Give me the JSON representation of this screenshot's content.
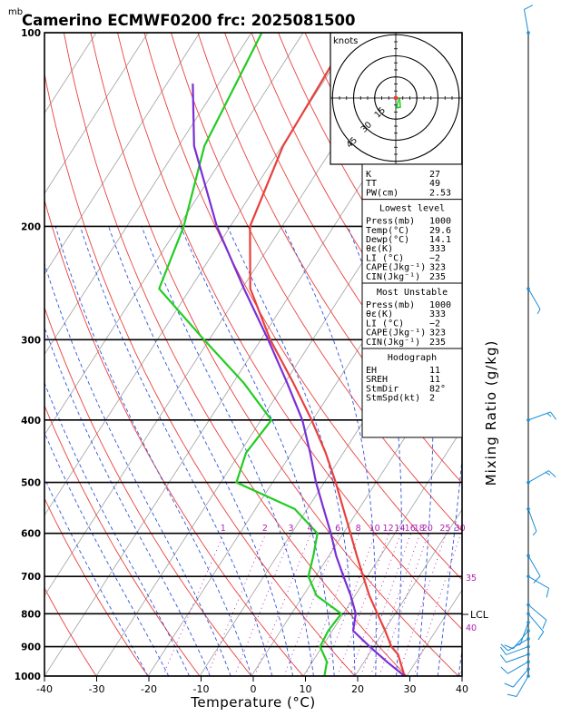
{
  "header": {
    "unit_top": "mb",
    "title": "Camerino ECMWF0200 frc: 2025081500"
  },
  "axes": {
    "xlabel": "Temperature (°C)",
    "right_label": "Mixing Ratio (g/kg)",
    "x_ticks": [
      "-40",
      "-30",
      "-20",
      "-10",
      "0",
      "10",
      "20",
      "30",
      "40"
    ],
    "p_ticks": [
      "100",
      "200",
      "300",
      "400",
      "500",
      "600",
      "700",
      "800",
      "900",
      "1000"
    ],
    "lcl_label": "LCL"
  },
  "mixing_ratio_labels": [
    "1",
    "2",
    "3",
    "4",
    "6",
    "8",
    "10",
    "12",
    "14",
    "16",
    "18",
    "20",
    "25",
    "30"
  ],
  "side_labels": [
    "35",
    "40"
  ],
  "hodograph": {
    "unit": "knots",
    "ring_labels": [
      "15",
      "30",
      "45"
    ]
  },
  "indices": {
    "rows": [
      {
        "label": "K",
        "value": "27"
      },
      {
        "label": "TT",
        "value": "49"
      },
      {
        "label": "PW(cm)",
        "value": "2.53"
      }
    ]
  },
  "lowest_level": {
    "title": "Lowest level",
    "rows": [
      {
        "label": "Press(mb)",
        "value": "1000"
      },
      {
        "label": "Temp(°C)",
        "value": "29.6"
      },
      {
        "label": "Dewp(°C)",
        "value": "14.1"
      },
      {
        "label": "θε(K)",
        "value": "333"
      },
      {
        "label": "LI (°C)",
        "value": "−2"
      },
      {
        "label": "CAPE(Jkg⁻¹)",
        "value": "323"
      },
      {
        "label": "CIN(Jkg⁻¹)",
        "value": "235"
      }
    ]
  },
  "most_unstable": {
    "title": "Most Unstable",
    "rows": [
      {
        "label": "Press(mb)",
        "value": "1000"
      },
      {
        "label": "θε(K)",
        "value": "333"
      },
      {
        "label": "LI (°C)",
        "value": "−2"
      },
      {
        "label": "CAPE(Jkg⁻¹)",
        "value": "323"
      },
      {
        "label": "CIN(Jkg⁻¹)",
        "value": "235"
      }
    ]
  },
  "hodograph_box": {
    "title": "Hodograph",
    "rows": [
      {
        "label": "EH",
        "value": "11"
      },
      {
        "label": "SREH",
        "value": "11"
      },
      {
        "label": "StmDir",
        "value": "82°"
      },
      {
        "label": "StmSpd(kt)",
        "value": "2"
      }
    ]
  },
  "colors": {
    "temperature": "#e8413c",
    "dewpoint": "#22cc22",
    "parcel": "#7a2fd6",
    "dry_adiabat": "#e8413c",
    "moist_adiabat": "#2f55e0",
    "mixing_ratio": "#b020b0",
    "isotherm": "#a0a0a0",
    "wind": "#1a8fd6"
  },
  "chart_data": {
    "type": "line",
    "title": "Camerino ECMWF0200 frc: 2025081500",
    "xlabel": "Temperature (°C)",
    "ylabel": "mb",
    "xlim": [
      -40,
      40
    ],
    "ylim": [
      1000,
      100
    ],
    "y_scale": "log-pressure",
    "series": [
      {
        "key": "temperature",
        "p": [
          1000,
          925,
          900,
          850,
          800,
          750,
          700,
          650,
          600,
          550,
          500,
          450,
          400,
          350,
          300,
          250,
          200,
          150,
          100
        ],
        "t": [
          29.6,
          25.6,
          23.4,
          20.2,
          16.6,
          12.8,
          9.2,
          5.4,
          1.4,
          -3.0,
          -7.8,
          -13.4,
          -20.2,
          -28.4,
          -38.2,
          -48.4,
          -56.2,
          -59.8,
          -60.8
        ]
      },
      {
        "key": "dewpoint",
        "p": [
          1000,
          950,
          900,
          850,
          800,
          750,
          700,
          650,
          600,
          550,
          500,
          450,
          400,
          350,
          300,
          250,
          200,
          150,
          100
        ],
        "t": [
          14.1,
          12.8,
          9.6,
          9.2,
          9.6,
          2.6,
          -1.4,
          -3.0,
          -5.0,
          -12.4,
          -27.0,
          -28.8,
          -28.0,
          -38.0,
          -51.0,
          -66.0,
          -69.0,
          -75.0,
          -78.0
        ]
      },
      {
        "key": "parcel",
        "p": [
          1000,
          950,
          900,
          850,
          800,
          750,
          700,
          650,
          600,
          550,
          500,
          450,
          400,
          350,
          300,
          250,
          200,
          150,
          120
        ],
        "t": [
          29.6,
          24.4,
          19.2,
          14.0,
          12.4,
          9.2,
          5.4,
          1.4,
          -2.4,
          -6.8,
          -11.6,
          -16.4,
          -22.0,
          -29.6,
          -38.6,
          -49.6,
          -62.6,
          -77.0,
          -85.0
        ]
      }
    ],
    "lcl_pressure": 800,
    "mixing_ratio_values": [
      1,
      2,
      3,
      4,
      6,
      8,
      10,
      12,
      14,
      16,
      18,
      20,
      25,
      30
    ],
    "hodograph": [
      [
        0,
        0
      ],
      [
        2.8,
        -0.8
      ],
      [
        3.2,
        -6.5
      ],
      [
        0.8,
        -7.0
      ],
      [
        1.8,
        -1.5
      ]
    ],
    "wind_barbs": [
      {
        "p": 1000,
        "dir": 210,
        "spd": 10
      },
      {
        "p": 975,
        "dir": 220,
        "spd": 10
      },
      {
        "p": 950,
        "dir": 240,
        "spd": 10
      },
      {
        "p": 925,
        "dir": 250,
        "spd": 10
      },
      {
        "p": 900,
        "dir": 250,
        "spd": 10
      },
      {
        "p": 875,
        "dir": 240,
        "spd": 10
      },
      {
        "p": 850,
        "dir": 220,
        "spd": 10
      },
      {
        "p": 825,
        "dir": 200,
        "spd": 5
      },
      {
        "p": 800,
        "dir": 140,
        "spd": 10
      },
      {
        "p": 775,
        "dir": 130,
        "spd": 10
      },
      {
        "p": 700,
        "dir": 120,
        "spd": 10
      },
      {
        "p": 650,
        "dir": 150,
        "spd": 10
      },
      {
        "p": 550,
        "dir": 160,
        "spd": 5
      },
      {
        "p": 500,
        "dir": 60,
        "spd": 15
      },
      {
        "p": 400,
        "dir": 70,
        "spd": 15
      },
      {
        "p": 250,
        "dir": 150,
        "spd": 5
      },
      {
        "p": 100,
        "dir": 350,
        "spd": 10
      }
    ]
  }
}
